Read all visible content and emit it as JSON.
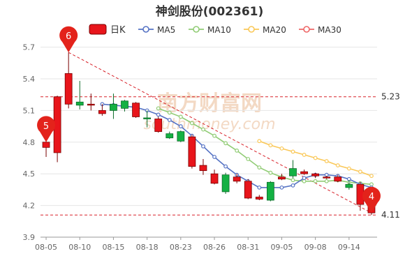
{
  "chart_data": {
    "type": "candlestick",
    "title": "神剑股份(002361)",
    "legend": [
      {
        "name": "日K",
        "color": "#e8151b"
      },
      {
        "name": "MA5",
        "color": "#5572c4"
      },
      {
        "name": "MA10",
        "color": "#91cc75"
      },
      {
        "name": "MA20",
        "color": "#fac858"
      },
      {
        "name": "MA30",
        "color": "#ee6666"
      }
    ],
    "ylim": [
      3.9,
      5.75
    ],
    "yticks": [
      "3.9",
      "4.2",
      "4.5",
      "4.8",
      "5.1",
      "5.4",
      "5.7"
    ],
    "x_labels": [
      {
        "label": "08-05",
        "index": 0
      },
      {
        "label": "08-10",
        "index": 3
      },
      {
        "label": "08-15",
        "index": 6
      },
      {
        "label": "08-18",
        "index": 9
      },
      {
        "label": "08-23",
        "index": 12
      },
      {
        "label": "08-26",
        "index": 15
      },
      {
        "label": "08-31",
        "index": 18
      },
      {
        "label": "09-05",
        "index": 21
      },
      {
        "label": "09-08",
        "index": 24
      },
      {
        "label": "09-14",
        "index": 27
      }
    ],
    "candles": [
      {
        "o": 4.75,
        "c": 4.8,
        "h": 4.84,
        "l": 4.66
      },
      {
        "o": 4.7,
        "c": 5.23,
        "h": 5.24,
        "l": 4.61
      },
      {
        "o": 5.16,
        "c": 5.45,
        "h": 5.65,
        "l": 5.12
      },
      {
        "o": 5.18,
        "c": 5.15,
        "h": 5.38,
        "l": 5.11
      },
      {
        "o": 5.15,
        "c": 5.16,
        "h": 5.26,
        "l": 5.1
      },
      {
        "o": 5.07,
        "c": 5.1,
        "h": 5.16,
        "l": 5.05
      },
      {
        "o": 5.16,
        "c": 5.1,
        "h": 5.26,
        "l": 5.02
      },
      {
        "o": 5.19,
        "c": 5.12,
        "h": 5.2,
        "l": 5.09
      },
      {
        "o": 5.04,
        "c": 5.17,
        "h": 5.18,
        "l": 5.03
      },
      {
        "o": 5.03,
        "c": 5.02,
        "h": 5.1,
        "l": 4.94
      },
      {
        "o": 4.9,
        "c": 5.02,
        "h": 5.04,
        "l": 4.89
      },
      {
        "o": 4.88,
        "c": 4.84,
        "h": 4.9,
        "l": 4.83
      },
      {
        "o": 4.9,
        "c": 4.81,
        "h": 4.91,
        "l": 4.8
      },
      {
        "o": 4.57,
        "c": 4.85,
        "h": 4.87,
        "l": 4.55
      },
      {
        "o": 4.53,
        "c": 4.58,
        "h": 4.64,
        "l": 4.49
      },
      {
        "o": 4.41,
        "c": 4.5,
        "h": 4.54,
        "l": 4.4
      },
      {
        "o": 4.49,
        "c": 4.33,
        "h": 4.51,
        "l": 4.31
      },
      {
        "o": 4.43,
        "c": 4.47,
        "h": 4.5,
        "l": 4.41
      },
      {
        "o": 4.27,
        "c": 4.43,
        "h": 4.45,
        "l": 4.26
      },
      {
        "o": 4.26,
        "c": 4.28,
        "h": 4.3,
        "l": 4.25
      },
      {
        "o": 4.42,
        "c": 4.25,
        "h": 4.43,
        "l": 4.24
      },
      {
        "o": 4.45,
        "c": 4.47,
        "h": 4.5,
        "l": 4.44
      },
      {
        "o": 4.55,
        "c": 4.48,
        "h": 4.63,
        "l": 4.46
      },
      {
        "o": 4.5,
        "c": 4.52,
        "h": 4.54,
        "l": 4.49
      },
      {
        "o": 4.48,
        "c": 4.5,
        "h": 4.51,
        "l": 4.46
      },
      {
        "o": 4.46,
        "c": 4.47,
        "h": 4.48,
        "l": 4.45
      },
      {
        "o": 4.43,
        "c": 4.47,
        "h": 4.49,
        "l": 4.42
      },
      {
        "o": 4.4,
        "c": 4.37,
        "h": 4.44,
        "l": 4.35
      },
      {
        "o": 4.21,
        "c": 4.4,
        "h": 4.42,
        "l": 4.15
      },
      {
        "o": 4.13,
        "c": 4.22,
        "h": 4.24,
        "l": 4.11
      }
    ],
    "ma5": [
      null,
      null,
      null,
      null,
      null,
      5.16,
      5.15,
      5.14,
      5.13,
      5.1,
      5.06,
      5.01,
      4.95,
      4.86,
      4.76,
      4.66,
      4.57,
      4.49,
      4.43,
      4.37,
      4.37,
      4.37,
      4.39,
      4.46,
      4.49,
      4.49,
      4.48,
      4.45,
      4.4,
      4.37
    ],
    "ma10": [
      null,
      null,
      null,
      null,
      null,
      null,
      null,
      null,
      null,
      null,
      5.12,
      5.08,
      5.04,
      4.98,
      4.92,
      4.86,
      4.79,
      4.72,
      4.64,
      4.56,
      4.51,
      4.47,
      4.44,
      4.43,
      4.43,
      4.43,
      4.44,
      4.42,
      4.41,
      4.4
    ],
    "ma20": [
      null,
      null,
      null,
      null,
      null,
      null,
      null,
      null,
      null,
      null,
      null,
      null,
      null,
      null,
      null,
      null,
      null,
      null,
      null,
      4.81,
      4.77,
      4.74,
      4.71,
      4.68,
      4.65,
      4.62,
      4.58,
      4.55,
      4.52,
      4.48
    ],
    "hline_high": {
      "label": "5.23",
      "value": 5.23
    },
    "hline_low": {
      "label": "4.11",
      "value": 4.11
    },
    "trend_line": [
      {
        "index": 2,
        "value": 5.65
      },
      {
        "index": 29,
        "value": 4.13
      }
    ],
    "markers": [
      {
        "label": "6",
        "index": 2,
        "value": 5.65
      },
      {
        "label": "5",
        "index": 0,
        "value": 4.8
      },
      {
        "label": "4",
        "index": 29,
        "value": 4.13
      }
    ],
    "watermark": "南方财富网",
    "watermark_url": "southmoney.com"
  }
}
